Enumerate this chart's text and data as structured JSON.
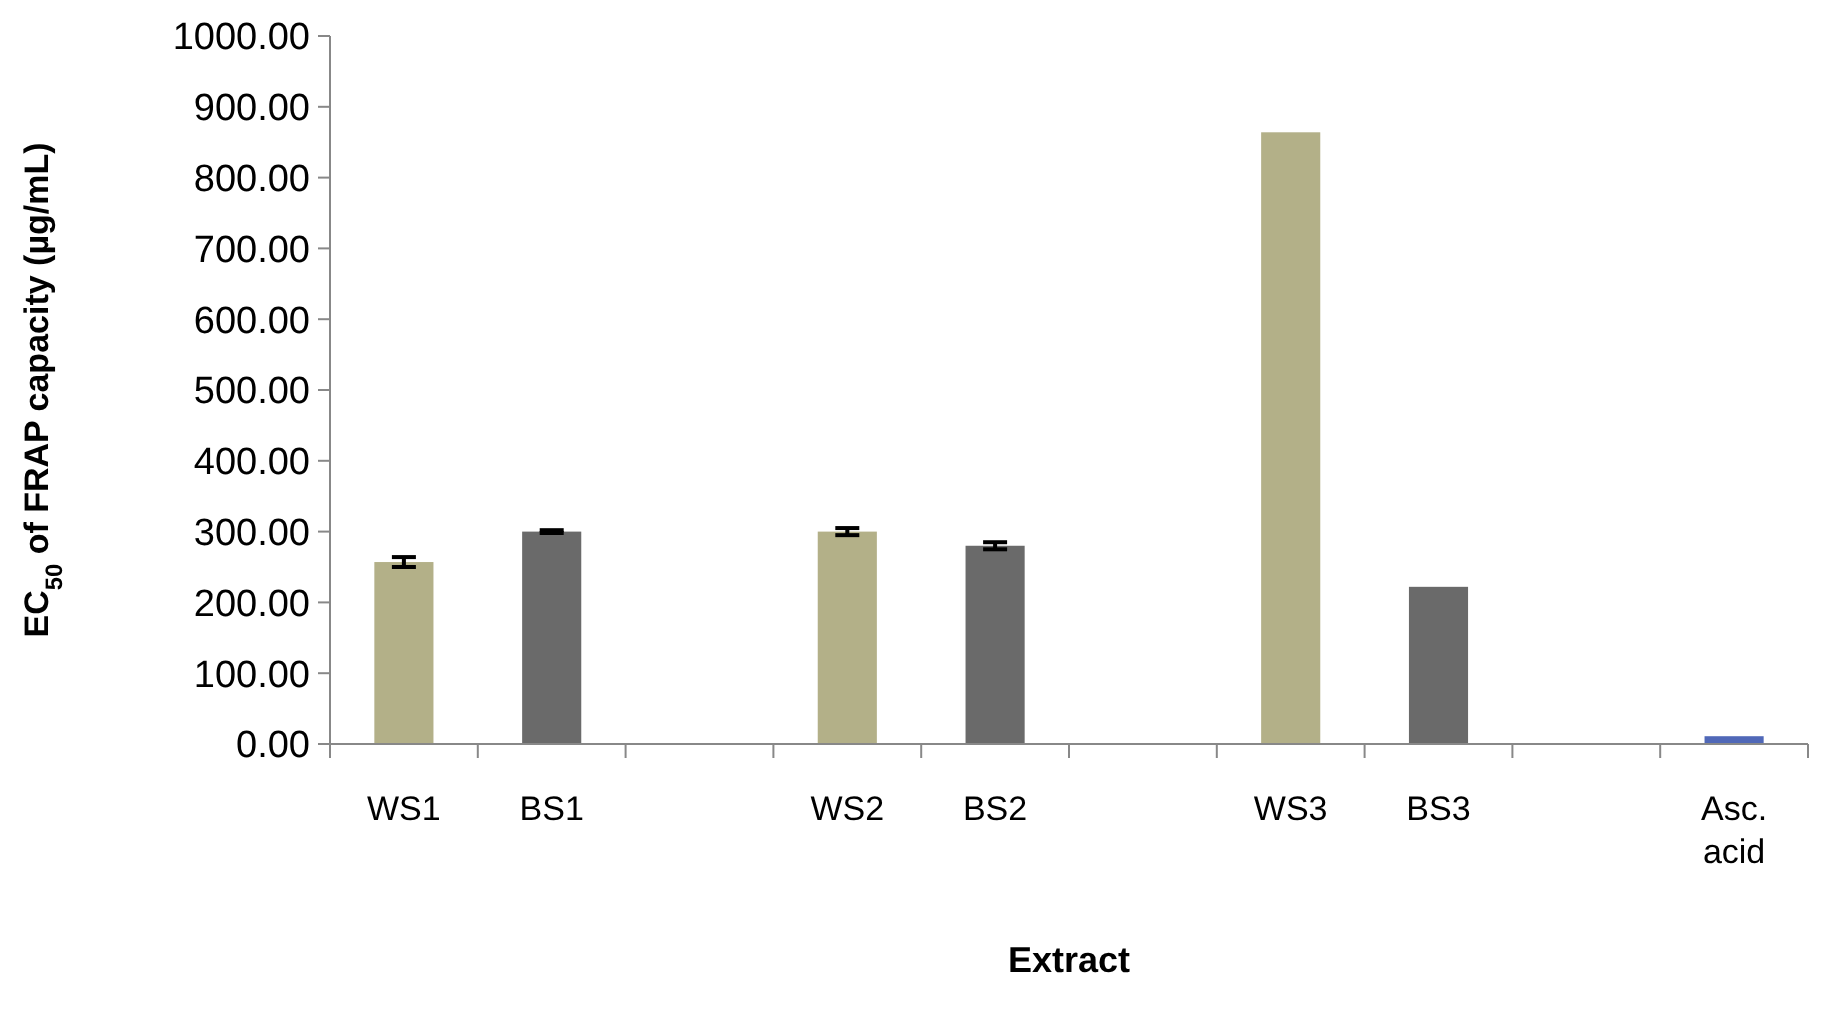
{
  "chart_data": {
    "type": "bar",
    "xlabel": "Extract",
    "ylabel": "EC$_{50}$ of FRAP capacity (µg/mL)",
    "categories": [
      "WS1",
      "BS1",
      null,
      "WS2",
      "BS2",
      null,
      "WS3",
      "BS3",
      null,
      "Asc. acid"
    ],
    "values": [
      257,
      300,
      null,
      300,
      280,
      null,
      864,
      222,
      null,
      11
    ],
    "errors": [
      7,
      2,
      null,
      5,
      5,
      null,
      null,
      null,
      null,
      null
    ],
    "colors": [
      "#b3b088",
      "#6a6a6a",
      null,
      "#b3b088",
      "#6a6a6a",
      null,
      "#b3b088",
      "#6a6a6a",
      null,
      "#5068b8"
    ],
    "ylim": [
      0,
      1000
    ],
    "yticks": [
      {
        "value": 0,
        "label": "0.00"
      },
      {
        "value": 100,
        "label": "100.00"
      },
      {
        "value": 200,
        "label": "200.00"
      },
      {
        "value": 300,
        "label": "300.00"
      },
      {
        "value": 400,
        "label": "400.00"
      },
      {
        "value": 500,
        "label": "500.00"
      },
      {
        "value": 600,
        "label": "600.00"
      },
      {
        "value": 700,
        "label": "700.00"
      },
      {
        "value": 800,
        "label": "800.00"
      },
      {
        "value": 900,
        "label": "900.00"
      },
      {
        "value": 1000,
        "label": "1000.00"
      }
    ],
    "grid": false
  }
}
